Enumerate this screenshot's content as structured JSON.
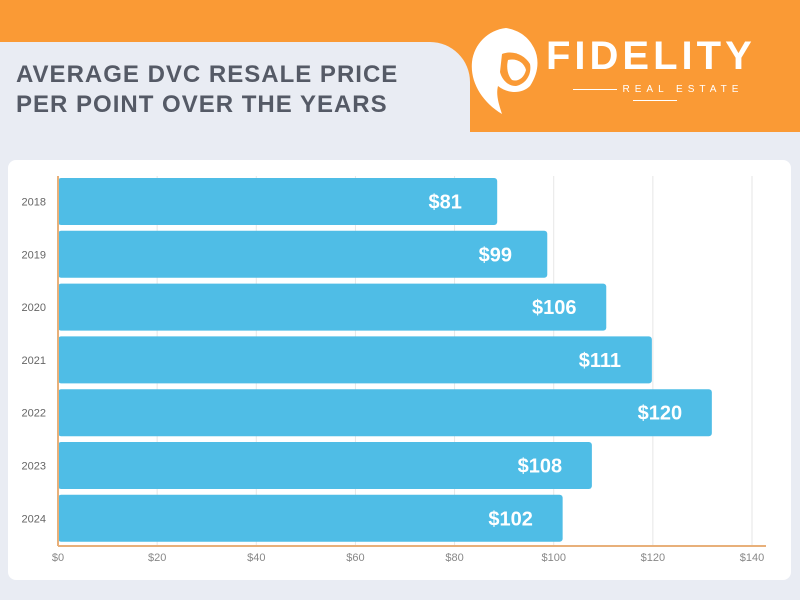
{
  "title_lines": [
    "AVERAGE DVC RESALE PRICE",
    "PER POINT OVER THE YEARS"
  ],
  "logo": {
    "name": "FIDELITY",
    "tagline": "REAL ESTATE",
    "icon": "lion-head-icon"
  },
  "colors": {
    "banner": "#fa9a35",
    "bar": "#4fbde6",
    "axis": "#e8b07a",
    "background": "#e9ecf3"
  },
  "chart_data": {
    "type": "bar",
    "orientation": "horizontal",
    "categories": [
      "2018",
      "2019",
      "2020",
      "2021",
      "2022",
      "2023",
      "2024"
    ],
    "values": [
      81,
      99,
      106,
      111,
      120,
      108,
      102
    ],
    "data_labels": [
      "$81",
      "$99",
      "$106",
      "$111",
      "$120",
      "$108",
      "$102"
    ],
    "x_ticks": [
      "$0",
      "$20",
      "$40",
      "$60",
      "$80",
      "$100",
      "$120",
      "$140"
    ],
    "xlim": [
      0,
      140
    ],
    "grid": true,
    "title": "",
    "xlabel": "",
    "ylabel": ""
  }
}
